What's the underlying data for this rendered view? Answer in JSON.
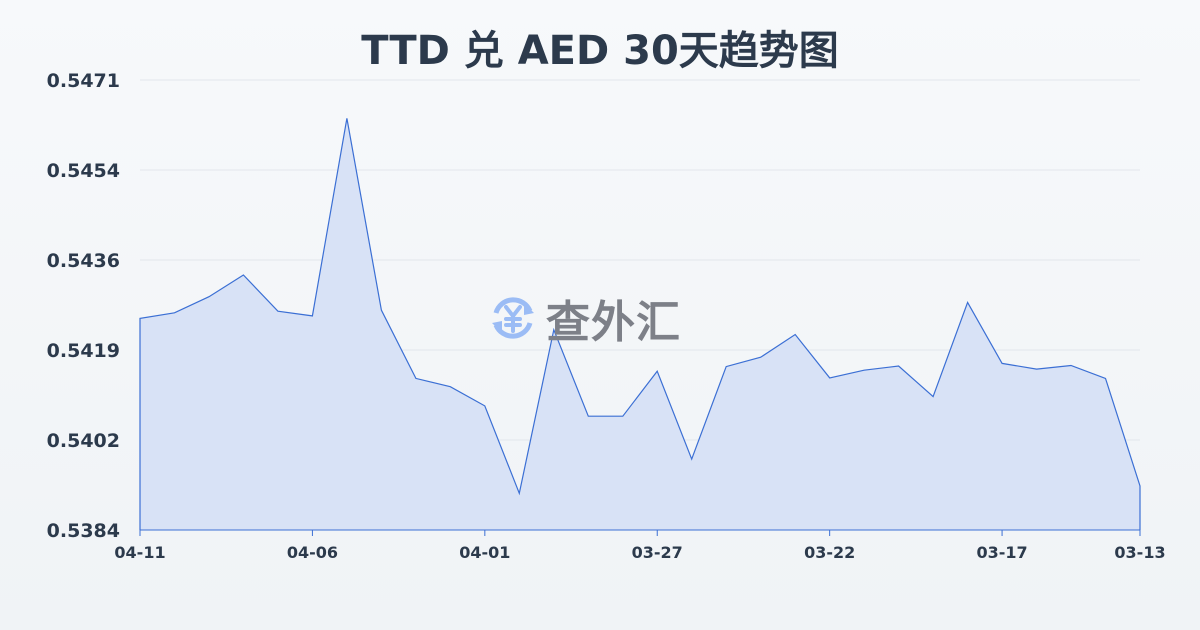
{
  "chart_data": {
    "type": "area",
    "title": "TTD 兑 AED 30天趋势图",
    "xlabel": "",
    "ylabel": "",
    "x": [
      "04-11",
      "04-10",
      "04-09",
      "04-08",
      "04-07",
      "04-06",
      "04-05",
      "04-04",
      "04-03",
      "04-02",
      "04-01",
      "03-31",
      "03-30",
      "03-29",
      "03-28",
      "03-27",
      "03-26",
      "03-25",
      "03-24",
      "03-23",
      "03-22",
      "03-21",
      "03-20",
      "03-19",
      "03-18",
      "03-17",
      "03-16",
      "03-15",
      "03-14",
      "03-13"
    ],
    "values": [
      0.54249,
      0.5426,
      0.54291,
      0.54333,
      0.54263,
      0.54254,
      0.54636,
      0.54265,
      0.54133,
      0.54117,
      0.5408,
      0.53911,
      0.54227,
      0.5406,
      0.5406,
      0.54147,
      0.53977,
      0.54156,
      0.54174,
      0.54218,
      0.54134,
      0.54149,
      0.54157,
      0.54098,
      0.5428,
      0.54162,
      0.54151,
      0.54158,
      0.54133,
      0.53925
    ],
    "x_tick_labels": [
      "04-11",
      "04-06",
      "04-01",
      "03-27",
      "03-22",
      "03-17",
      "03-13"
    ],
    "y_tick_labels": [
      "0.5384",
      "0.5402",
      "0.5419",
      "0.5436",
      "0.5454",
      "0.5471"
    ],
    "ylim": [
      0.5384,
      0.5471
    ],
    "grid": true,
    "line_color": "#3b6fd4",
    "fill_color": "#d6e0f5"
  },
  "watermark": {
    "text": "查外汇",
    "icon": "yen-exchange-icon"
  }
}
